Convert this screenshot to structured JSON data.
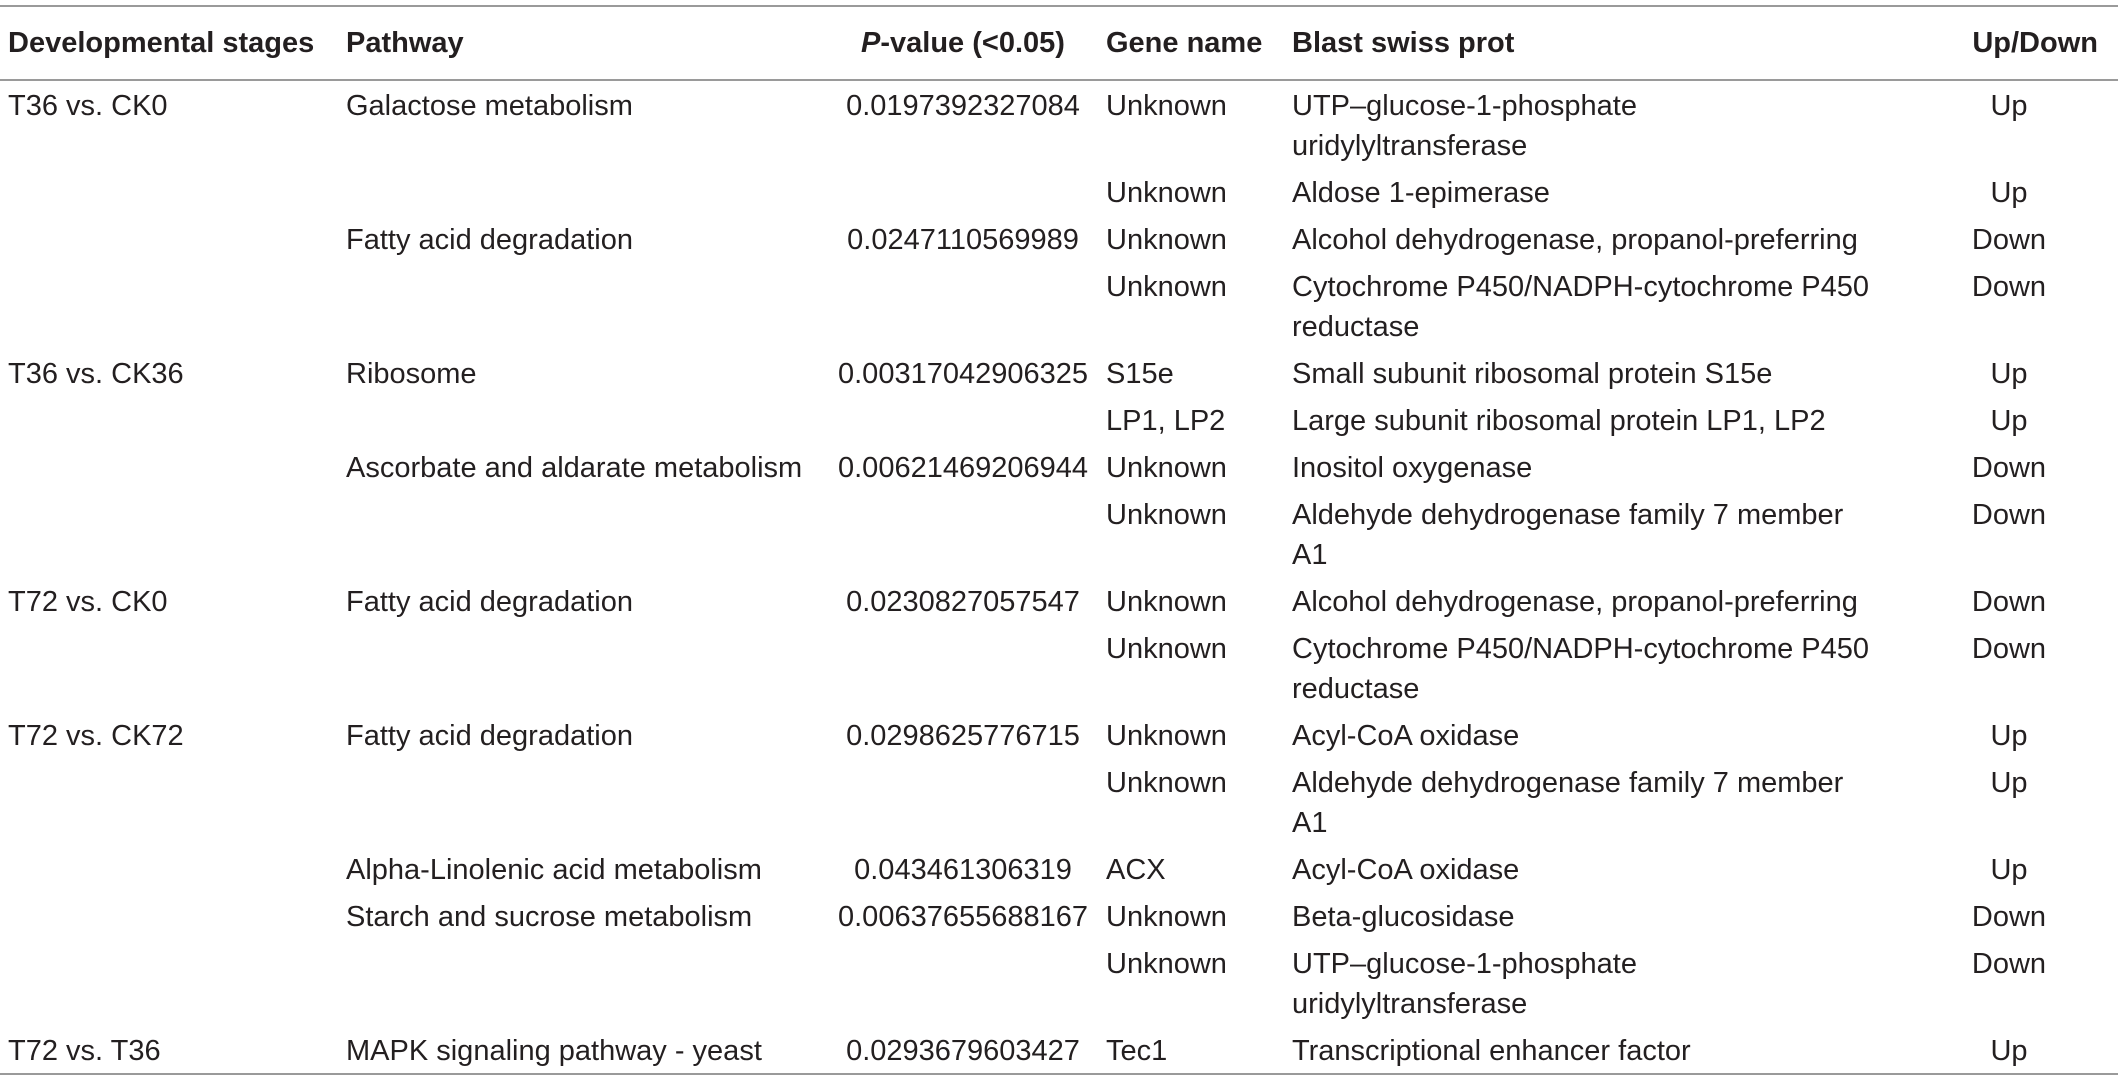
{
  "headers": {
    "stage": "Developmental stages",
    "pathway": "Pathway",
    "pvalue_italic": "P",
    "pvalue_rest": "-value (<0.05)",
    "gene": "Gene name",
    "blast": "Blast swiss prot",
    "updown": "Up/Down"
  },
  "rows": [
    {
      "stage": "T36 vs. CK0",
      "pathway": "Galactose metabolism",
      "pvalue": "0.0197392327084",
      "gene": "Unknown",
      "blast": "UTP–glucose-1-phosphate uridylyltransferase",
      "updown": "Up"
    },
    {
      "stage": "",
      "pathway": "",
      "pvalue": "",
      "gene": "Unknown",
      "blast": "Aldose 1-epimerase",
      "updown": "Up"
    },
    {
      "stage": "",
      "pathway": "Fatty acid degradation",
      "pvalue": "0.0247110569989",
      "gene": "Unknown",
      "blast": "Alcohol dehydrogenase, propanol-preferring",
      "updown": "Down"
    },
    {
      "stage": "",
      "pathway": "",
      "pvalue": "",
      "gene": "Unknown",
      "blast": "Cytochrome P450/NADPH-cytochrome P450 reductase",
      "updown": "Down"
    },
    {
      "stage": "T36 vs. CK36",
      "pathway": "Ribosome",
      "pvalue": "0.00317042906325",
      "gene": "S15e",
      "blast": "Small subunit ribosomal protein S15e",
      "updown": "Up"
    },
    {
      "stage": "",
      "pathway": "",
      "pvalue": "",
      "gene": "LP1, LP2",
      "blast": "Large subunit ribosomal protein LP1, LP2",
      "updown": "Up"
    },
    {
      "stage": "",
      "pathway": "Ascorbate and aldarate metabolism",
      "pvalue": "0.00621469206944",
      "gene": "Unknown",
      "blast": "Inositol oxygenase",
      "updown": "Down"
    },
    {
      "stage": "",
      "pathway": "",
      "pvalue": "",
      "gene": "Unknown",
      "blast": "Aldehyde dehydrogenase family 7 member A1",
      "updown": "Down"
    },
    {
      "stage": "T72 vs. CK0",
      "pathway": "Fatty acid degradation",
      "pvalue": "0.0230827057547",
      "gene": "Unknown",
      "blast": "Alcohol dehydrogenase, propanol-preferring",
      "updown": "Down"
    },
    {
      "stage": "",
      "pathway": "",
      "pvalue": "",
      "gene": "Unknown",
      "blast": "Cytochrome P450/NADPH-cytochrome P450 reductase",
      "updown": "Down"
    },
    {
      "stage": "T72 vs. CK72",
      "pathway": "Fatty acid degradation",
      "pvalue": "0.0298625776715",
      "gene": "Unknown",
      "blast": "Acyl-CoA oxidase",
      "updown": "Up"
    },
    {
      "stage": "",
      "pathway": "",
      "pvalue": "",
      "gene": "Unknown",
      "blast": "Aldehyde dehydrogenase family 7 member A1",
      "updown": "Up"
    },
    {
      "stage": "",
      "pathway": "Alpha-Linolenic acid metabolism",
      "pvalue": "0.043461306319",
      "gene": "ACX",
      "blast": "Acyl-CoA oxidase",
      "updown": "Up"
    },
    {
      "stage": "",
      "pathway": "Starch and sucrose metabolism",
      "pvalue": "0.00637655688167",
      "gene": "Unknown",
      "blast": "Beta-glucosidase",
      "updown": "Down"
    },
    {
      "stage": "",
      "pathway": "",
      "pvalue": "",
      "gene": "Unknown",
      "blast": "UTP–glucose-1-phosphate uridylyltransferase",
      "updown": "Down"
    },
    {
      "stage": "T72 vs. T36",
      "pathway": "MAPK signaling pathway - yeast",
      "pvalue": "0.0293679603427",
      "gene": "Tec1",
      "blast": "Transcriptional enhancer factor",
      "updown": "Up"
    }
  ]
}
